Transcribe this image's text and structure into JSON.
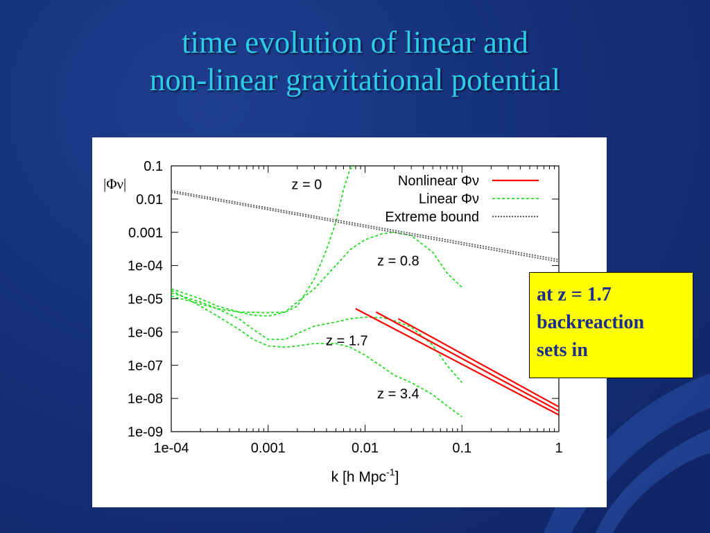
{
  "slide": {
    "title_lines": [
      "time evolution of linear and",
      "non-linear gravitational potential"
    ],
    "callout_lines": [
      "at z = 1.7",
      "backreaction",
      "sets in"
    ],
    "colors": {
      "background": "#16307a",
      "title": "#2fc9ea",
      "callout_bg": "#ffff00",
      "callout_text": "#1b2e8a"
    }
  },
  "chart_data": {
    "type": "line",
    "x_scale": "log",
    "y_scale": "log",
    "xlim": [
      0.0001,
      1
    ],
    "ylim": [
      1e-09,
      0.1
    ],
    "xlabel": "k [h Mpc",
    "xlabel_sup": "-1",
    "xlabel_end": "]",
    "ylabel": "|Φν|",
    "x_ticks": [
      "1e-04",
      "0.001",
      "0.01",
      "0.1",
      "1"
    ],
    "x_tick_values": [
      0.0001,
      0.001,
      0.01,
      0.1,
      1
    ],
    "y_ticks": [
      "1e-09",
      "1e-08",
      "1e-07",
      "1e-06",
      "1e-05",
      "1e-04",
      "0.001",
      "0.01",
      "0.1"
    ],
    "y_tick_values": [
      1e-09,
      1e-08,
      1e-07,
      1e-06,
      1e-05,
      0.0001,
      0.001,
      0.01,
      0.1
    ],
    "legend_position": "top-right",
    "legend": [
      {
        "label": "Nonlinear Φν",
        "color": "#ff0000",
        "style": "solid"
      },
      {
        "label": "Linear Φν",
        "color": "#22dd22",
        "style": "dashed"
      },
      {
        "label": "Extreme bound",
        "color": "#444444",
        "style": "dotted"
      }
    ],
    "annotations": [
      {
        "text": "z = 0",
        "x": 0.0025,
        "y": 0.02
      },
      {
        "text": "z = 0.8",
        "x": 0.022,
        "y": 0.0001
      },
      {
        "text": "z = 1.7",
        "x": 0.0065,
        "y": 4e-07
      },
      {
        "text": "z = 3.4",
        "x": 0.022,
        "y": 1e-08
      }
    ],
    "series": [
      {
        "group": "Linear Φν",
        "label": "z = 0",
        "color": "#22dd22",
        "style": "dashed",
        "x": [
          0.0001,
          0.0002,
          0.0003,
          0.0005,
          0.001,
          0.0015,
          0.002,
          0.003,
          0.004,
          0.005,
          0.006,
          0.007,
          0.0079
        ],
        "y": [
          1.2e-05,
          7e-06,
          5e-06,
          4e-06,
          3.8e-06,
          4e-06,
          6e-06,
          4e-05,
          0.0003,
          0.002,
          0.02,
          0.08,
          0.1
        ]
      },
      {
        "group": "Linear Φν",
        "label": "z = 0.8",
        "color": "#22dd22",
        "style": "dashed",
        "x": [
          0.0001,
          0.0002,
          0.0003,
          0.0005,
          0.0007,
          0.001,
          0.0015,
          0.002,
          0.003,
          0.004,
          0.005,
          0.007,
          0.01,
          0.015,
          0.02,
          0.03,
          0.05,
          0.07,
          0.1
        ],
        "y": [
          2e-05,
          1e-05,
          6e-06,
          4e-06,
          3.2e-06,
          3e-06,
          4e-06,
          8e-06,
          2e-05,
          5e-05,
          0.0001,
          0.0003,
          0.0006,
          0.0009,
          0.001,
          0.0008,
          0.00025,
          6e-05,
          2.2e-05
        ]
      },
      {
        "group": "Linear Φν",
        "label": "z = 1.7",
        "color": "#22dd22",
        "style": "dashed",
        "x": [
          0.0001,
          0.0002,
          0.0003,
          0.0005,
          0.0007,
          0.001,
          0.0015,
          0.002,
          0.003,
          0.005,
          0.007,
          0.01,
          0.015,
          0.02,
          0.03,
          0.05,
          0.07,
          0.1
        ],
        "y": [
          1.5e-05,
          8e-06,
          5e-06,
          2.5e-06,
          1.2e-06,
          6e-07,
          6e-07,
          9e-07,
          1.5e-06,
          2e-06,
          2.5e-06,
          2.8e-06,
          2.7e-06,
          2.2e-06,
          1.4e-06,
          4e-07,
          1e-07,
          3e-08
        ]
      },
      {
        "group": "Linear Φν",
        "label": "z = 3.4",
        "color": "#22dd22",
        "style": "dashed",
        "x": [
          0.0001,
          0.0002,
          0.0003,
          0.0005,
          0.0007,
          0.001,
          0.0015,
          0.002,
          0.003,
          0.005,
          0.007,
          0.01,
          0.015,
          0.02,
          0.03,
          0.05,
          0.07,
          0.1
        ],
        "y": [
          1.8e-05,
          6e-06,
          3e-06,
          1.2e-06,
          6e-07,
          3.8e-07,
          3.5e-07,
          3.8e-07,
          4.5e-07,
          4.5e-07,
          3.5e-07,
          2e-07,
          9e-08,
          5e-08,
          3e-08,
          1.3e-08,
          6e-09,
          2.8e-09
        ]
      },
      {
        "group": "Nonlinear Φν",
        "label": "a",
        "color": "#ff0000",
        "style": "solid",
        "x": [
          0.008,
          1
        ],
        "y": [
          5e-06,
          3.2e-09
        ]
      },
      {
        "group": "Nonlinear Φν",
        "label": "b",
        "color": "#ff0000",
        "style": "solid",
        "x": [
          0.013,
          1
        ],
        "y": [
          4e-06,
          4.2e-09
        ]
      },
      {
        "group": "Nonlinear Φν",
        "label": "c",
        "color": "#ff0000",
        "style": "solid",
        "x": [
          0.022,
          1
        ],
        "y": [
          2.5e-06,
          5.6e-09
        ]
      },
      {
        "group": "Extreme bound",
        "label": "bound-1",
        "color": "#555555",
        "style": "dotted",
        "x": [
          0.0001,
          1
        ],
        "y": [
          0.018,
          0.00015
        ]
      },
      {
        "group": "Extreme bound",
        "label": "bound-2",
        "color": "#555555",
        "style": "dotted",
        "x": [
          0.0001,
          1
        ],
        "y": [
          0.016,
          0.00013
        ]
      }
    ]
  }
}
